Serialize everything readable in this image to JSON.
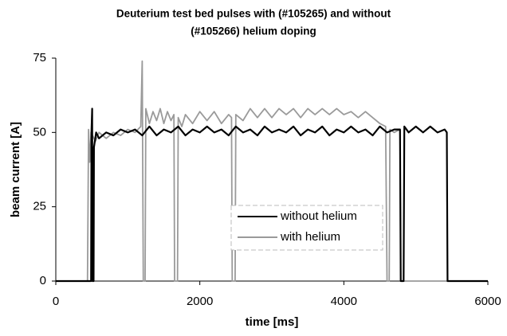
{
  "chart_data": {
    "type": "line",
    "title": "Deuterium test bed pulses with (#105265) and without",
    "subtitle": "(#105266) helium doping",
    "xlabel": "time [ms]",
    "ylabel": "beam current [A]",
    "xlim": [
      0,
      6000
    ],
    "ylim": [
      0,
      75
    ],
    "xticks": [
      0,
      2000,
      4000,
      6000
    ],
    "yticks": [
      0,
      25,
      50,
      75
    ],
    "grid": false,
    "legend": "lower center",
    "series": [
      {
        "name": "with helium",
        "color": "#9a9a9a",
        "x": [
          0,
          440,
          455,
          470,
          490,
          550,
          600,
          700,
          800,
          900,
          1000,
          1100,
          1180,
          1200,
          1215,
          1240,
          1250,
          1300,
          1350,
          1400,
          1450,
          1500,
          1550,
          1600,
          1640,
          1650,
          1690,
          1700,
          1750,
          1800,
          1900,
          2000,
          2100,
          2200,
          2300,
          2400,
          2440,
          2450,
          2490,
          2500,
          2600,
          2700,
          2800,
          2900,
          3000,
          3100,
          3200,
          3300,
          3400,
          3500,
          3600,
          3700,
          3800,
          3900,
          4000,
          4100,
          4200,
          4300,
          4400,
          4500,
          4580,
          4600,
          4630,
          4640,
          4700,
          4780,
          4790,
          6000
        ],
        "values": [
          0,
          0,
          51,
          40,
          50,
          47,
          50,
          48,
          50,
          49,
          51,
          50,
          52,
          74,
          0,
          0,
          58,
          53,
          57,
          54,
          58,
          53,
          57,
          54,
          56,
          0,
          0,
          55,
          52,
          56,
          53,
          57,
          54,
          57,
          53,
          56,
          55,
          0,
          0,
          56,
          54,
          58,
          55,
          58,
          55,
          58,
          56,
          58,
          55,
          58,
          56,
          58,
          56,
          58,
          56,
          57,
          55,
          57,
          55,
          53,
          52,
          0,
          0,
          51,
          50,
          51,
          0,
          0
        ]
      },
      {
        "name": "without helium",
        "color": "#000000",
        "x": [
          0,
          490,
          495,
          505,
          510,
          525,
          530,
          560,
          600,
          700,
          800,
          900,
          1000,
          1100,
          1200,
          1300,
          1400,
          1500,
          1600,
          1700,
          1800,
          1900,
          2000,
          2100,
          2200,
          2300,
          2400,
          2500,
          2600,
          2700,
          2800,
          2900,
          3000,
          3100,
          3200,
          3300,
          3400,
          3500,
          3600,
          3700,
          3800,
          3900,
          4000,
          4100,
          4200,
          4300,
          4400,
          4500,
          4600,
          4700,
          4780,
          4790,
          4830,
          4840,
          4900,
          5000,
          5100,
          5200,
          5300,
          5400,
          5430,
          5440,
          6000
        ],
        "values": [
          0,
          0,
          50,
          58,
          0,
          0,
          45,
          50,
          48,
          50,
          49,
          51,
          50,
          51,
          49,
          52,
          49,
          51,
          50,
          52,
          49,
          51,
          50,
          52,
          50,
          51,
          49,
          52,
          50,
          51,
          49,
          52,
          50,
          51,
          50,
          52,
          49,
          51,
          50,
          52,
          49,
          51,
          50,
          52,
          50,
          51,
          49,
          52,
          50,
          51,
          51,
          0,
          0,
          52,
          50,
          52,
          50,
          52,
          50,
          51,
          50,
          0,
          0
        ]
      }
    ]
  }
}
